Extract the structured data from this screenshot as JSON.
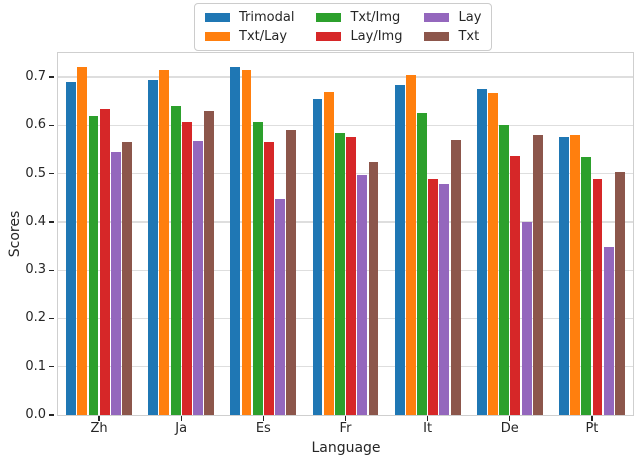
{
  "chart_data": {
    "type": "bar",
    "title": "",
    "xlabel": "Language",
    "ylabel": "Scores",
    "categories": [
      "Zh",
      "Ja",
      "Es",
      "Fr",
      "It",
      "De",
      "Pt"
    ],
    "series": [
      {
        "name": "Trimodal",
        "color": "#1f77b4",
        "values": [
          0.69,
          0.695,
          0.72,
          0.655,
          0.683,
          0.675,
          0.575
        ]
      },
      {
        "name": "Txt/Lay",
        "color": "#ff7f0e",
        "values": [
          0.72,
          0.715,
          0.714,
          0.67,
          0.705,
          0.668,
          0.58
        ]
      },
      {
        "name": "Txt/Img",
        "color": "#2ca02c",
        "values": [
          0.62,
          0.64,
          0.607,
          0.585,
          0.625,
          0.6,
          0.534
        ]
      },
      {
        "name": "Lay/Img",
        "color": "#d62728",
        "values": [
          0.633,
          0.607,
          0.565,
          0.577,
          0.488,
          0.536,
          0.488
        ]
      },
      {
        "name": "Lay",
        "color": "#9467bd",
        "values": [
          0.545,
          0.568,
          0.448,
          0.498,
          0.478,
          0.4,
          0.348
        ]
      },
      {
        "name": "Txt",
        "color": "#8c564b",
        "values": [
          0.565,
          0.63,
          0.59,
          0.525,
          0.57,
          0.58,
          0.503
        ]
      }
    ],
    "ylim": [
      0,
      0.75
    ],
    "yticks": [
      0.0,
      0.1,
      0.2,
      0.3,
      0.4,
      0.5,
      0.6,
      0.7
    ],
    "grid": true,
    "legend_position": "top-center",
    "legend_columns": 3
  }
}
